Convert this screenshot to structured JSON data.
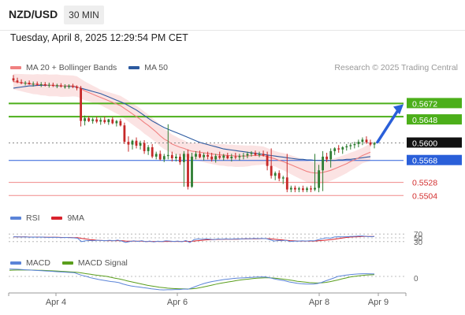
{
  "header": {
    "symbol": "NZD/USD",
    "interval": "30 MIN",
    "datetime": "Tuesday, April 8, 2025 12:29:54 PM CET"
  },
  "legend_main": [
    {
      "label": "MA 20 + Bollinger Bands",
      "color": "#f08080"
    },
    {
      "label": "MA 50",
      "color": "#2c5aa0"
    }
  ],
  "copyright": "Research © 2025 Trading Central",
  "legend_rsi": [
    {
      "label": "RSI",
      "color": "#5b84d8"
    },
    {
      "label": "9MA",
      "color": "#d9232d"
    }
  ],
  "legend_macd": [
    {
      "label": "MACD",
      "color": "#5b84d8"
    },
    {
      "label": "MACD Signal",
      "color": "#5a9e1c"
    }
  ],
  "colors": {
    "bull": "#2e7d32",
    "bear": "#c62828",
    "band": "#fbe3e3",
    "ma20": "#f08080",
    "ma50": "#2c5aa0",
    "target": "#4caf1a",
    "pivot": "#2a5fd9",
    "support": "#f08a8a",
    "arrow": "#2a5fd9"
  },
  "chart_data": [
    {
      "type": "candlestick",
      "x_labels": [
        "Apr 4",
        "Apr 6",
        "Apr 8",
        "Apr 9"
      ],
      "ylim": [
        0.549,
        0.572
      ],
      "price_levels": [
        {
          "value": 0.5672,
          "label": "0.5672",
          "kind": "target"
        },
        {
          "value": 0.5648,
          "label": "0.5648",
          "kind": "target"
        },
        {
          "value": 0.56,
          "label": "0.5600",
          "kind": "last"
        },
        {
          "value": 0.5568,
          "label": "0.5568",
          "kind": "pivot"
        },
        {
          "value": 0.5528,
          "label": "0.5528",
          "kind": "support"
        },
        {
          "value": 0.5504,
          "label": "0.5504",
          "kind": "support"
        }
      ],
      "candles": [
        [
          0.5718,
          0.5724,
          0.5711,
          0.5714
        ],
        [
          0.5714,
          0.5719,
          0.5709,
          0.5711
        ],
        [
          0.5711,
          0.5716,
          0.5707,
          0.5709
        ],
        [
          0.5709,
          0.5713,
          0.5705,
          0.571
        ],
        [
          0.571,
          0.5714,
          0.5706,
          0.5707
        ],
        [
          0.5707,
          0.5712,
          0.5703,
          0.5708
        ],
        [
          0.5708,
          0.5712,
          0.5704,
          0.5706
        ],
        [
          0.5706,
          0.5711,
          0.5702,
          0.5707
        ],
        [
          0.5707,
          0.5711,
          0.5703,
          0.5705
        ],
        [
          0.5705,
          0.571,
          0.5701,
          0.5706
        ],
        [
          0.5706,
          0.571,
          0.5702,
          0.5704
        ],
        [
          0.5704,
          0.5708,
          0.57,
          0.5705
        ],
        [
          0.5705,
          0.5709,
          0.5701,
          0.5703
        ],
        [
          0.5703,
          0.5707,
          0.5699,
          0.5703
        ],
        [
          0.5703,
          0.5707,
          0.5699,
          0.5704
        ],
        [
          0.5704,
          0.5708,
          0.57,
          0.5702
        ],
        [
          0.5702,
          0.5705,
          0.5696,
          0.57
        ],
        [
          0.57,
          0.5704,
          0.563,
          0.564
        ],
        [
          0.564,
          0.565,
          0.5632,
          0.5645
        ],
        [
          0.5645,
          0.5649,
          0.5638,
          0.564
        ],
        [
          0.564,
          0.5646,
          0.5635,
          0.5643
        ],
        [
          0.5643,
          0.5648,
          0.5636,
          0.5639
        ],
        [
          0.5639,
          0.5646,
          0.5633,
          0.5642
        ],
        [
          0.5642,
          0.5648,
          0.5635,
          0.5638
        ],
        [
          0.5638,
          0.5644,
          0.5633,
          0.5643
        ],
        [
          0.5643,
          0.5647,
          0.5634,
          0.5636
        ],
        [
          0.5636,
          0.5642,
          0.563,
          0.564
        ],
        [
          0.564,
          0.5644,
          0.563,
          0.5632
        ],
        [
          0.5632,
          0.5637,
          0.5598,
          0.5602
        ],
        [
          0.5602,
          0.5612,
          0.5584,
          0.5597
        ],
        [
          0.5597,
          0.5606,
          0.5588,
          0.5604
        ],
        [
          0.5604,
          0.561,
          0.559,
          0.5595
        ],
        [
          0.5595,
          0.5604,
          0.5588,
          0.56
        ],
        [
          0.56,
          0.5605,
          0.558,
          0.5585
        ],
        [
          0.5585,
          0.5596,
          0.5578,
          0.5592
        ],
        [
          0.5592,
          0.5598,
          0.5572,
          0.5575
        ],
        [
          0.5575,
          0.5584,
          0.557,
          0.558
        ],
        [
          0.558,
          0.5586,
          0.5568,
          0.557
        ],
        [
          0.557,
          0.558,
          0.5565,
          0.5576
        ],
        [
          0.5576,
          0.5634,
          0.557,
          0.5578
        ],
        [
          0.5578,
          0.5584,
          0.5566,
          0.5572
        ],
        [
          0.5572,
          0.558,
          0.5566,
          0.5575
        ],
        [
          0.5575,
          0.558,
          0.556,
          0.5565
        ],
        [
          0.5565,
          0.5585,
          0.552,
          0.558
        ],
        [
          0.558,
          0.5588,
          0.5515,
          0.552
        ],
        [
          0.552,
          0.5582,
          0.5518,
          0.5575
        ],
        [
          0.5575,
          0.5585,
          0.557,
          0.558
        ],
        [
          0.558,
          0.5586,
          0.5572,
          0.5574
        ],
        [
          0.5574,
          0.5582,
          0.5568,
          0.5578
        ],
        [
          0.5578,
          0.5584,
          0.557,
          0.5575
        ],
        [
          0.5575,
          0.5582,
          0.5566,
          0.557
        ],
        [
          0.557,
          0.558,
          0.5564,
          0.5576
        ],
        [
          0.5576,
          0.5584,
          0.557,
          0.5573
        ],
        [
          0.5573,
          0.558,
          0.5568,
          0.5577
        ],
        [
          0.5577,
          0.5582,
          0.557,
          0.5572
        ],
        [
          0.5572,
          0.558,
          0.5566,
          0.5575
        ],
        [
          0.5575,
          0.5582,
          0.557,
          0.5574
        ],
        [
          0.5574,
          0.558,
          0.5568,
          0.5576
        ],
        [
          0.5576,
          0.5582,
          0.557,
          0.5577
        ],
        [
          0.5577,
          0.5584,
          0.5572,
          0.558
        ],
        [
          0.558,
          0.5585,
          0.5575,
          0.5582
        ],
        [
          0.5582,
          0.5586,
          0.5576,
          0.5578
        ],
        [
          0.5578,
          0.5584,
          0.5574,
          0.558
        ],
        [
          0.558,
          0.5586,
          0.5575,
          0.5577
        ],
        [
          0.5577,
          0.5584,
          0.555,
          0.5558
        ],
        [
          0.5558,
          0.559,
          0.5535,
          0.554
        ],
        [
          0.554,
          0.5548,
          0.5532,
          0.5545
        ],
        [
          0.5545,
          0.555,
          0.553,
          0.5535
        ],
        [
          0.5535,
          0.554,
          0.5525,
          0.5537
        ],
        [
          0.5537,
          0.558,
          0.551,
          0.5515
        ],
        [
          0.5515,
          0.5522,
          0.551,
          0.5518
        ],
        [
          0.5518,
          0.5522,
          0.551,
          0.5515
        ],
        [
          0.5515,
          0.552,
          0.551,
          0.5517
        ],
        [
          0.5517,
          0.5522,
          0.551,
          0.5514
        ],
        [
          0.5514,
          0.552,
          0.551,
          0.5517
        ],
        [
          0.5517,
          0.5522,
          0.551,
          0.5515
        ],
        [
          0.5515,
          0.558,
          0.5512,
          0.5518
        ],
        [
          0.5518,
          0.556,
          0.551,
          0.555
        ],
        [
          0.555,
          0.5585,
          0.5512,
          0.5575
        ],
        [
          0.5575,
          0.5582,
          0.5565,
          0.557
        ],
        [
          0.557,
          0.559,
          0.5555,
          0.5585
        ],
        [
          0.5585,
          0.5592,
          0.5578,
          0.559
        ],
        [
          0.559,
          0.5596,
          0.5582,
          0.5588
        ],
        [
          0.5588,
          0.5594,
          0.558,
          0.5592
        ],
        [
          0.5592,
          0.5598,
          0.5586,
          0.5594
        ],
        [
          0.5594,
          0.56,
          0.5588,
          0.5596
        ],
        [
          0.5596,
          0.5602,
          0.559,
          0.5598
        ],
        [
          0.5598,
          0.5606,
          0.5592,
          0.5602
        ],
        [
          0.5602,
          0.561,
          0.5596,
          0.5606
        ],
        [
          0.5606,
          0.5612,
          0.5598,
          0.5601
        ],
        [
          0.5601,
          0.5606,
          0.5594,
          0.5597
        ],
        [
          0.5597,
          0.5602,
          0.559,
          0.56
        ]
      ],
      "ma20": [
        0.5712,
        0.5711,
        0.571,
        0.5709,
        0.5708,
        0.5707,
        0.5707,
        0.5706,
        0.5706,
        0.5705,
        0.5705,
        0.5705,
        0.5704,
        0.5704,
        0.5704,
        0.5704,
        0.5703,
        0.5699,
        0.5695,
        0.5692,
        0.5689,
        0.5686,
        0.5683,
        0.568,
        0.5677,
        0.5674,
        0.5671,
        0.5668,
        0.5663,
        0.5658,
        0.5653,
        0.5648,
        0.5643,
        0.5637,
        0.5632,
        0.5626,
        0.562,
        0.5613,
        0.5607,
        0.5603,
        0.5598,
        0.5595,
        0.5592,
        0.559,
        0.5587,
        0.5585,
        0.5584,
        0.5583,
        0.5582,
        0.5581,
        0.558,
        0.5579,
        0.5578,
        0.5578,
        0.5577,
        0.5577,
        0.5576,
        0.5576,
        0.5576,
        0.5576,
        0.5577,
        0.5577,
        0.5577,
        0.5577,
        0.5575,
        0.5573,
        0.5571,
        0.5568,
        0.5566,
        0.5563,
        0.556,
        0.5557,
        0.5554,
        0.5551,
        0.5548,
        0.5546,
        0.5545,
        0.5545,
        0.5546,
        0.5548,
        0.555,
        0.5553,
        0.5556,
        0.5559,
        0.5562,
        0.5566,
        0.5569,
        0.5573,
        0.5577,
        0.558,
        0.5583
      ],
      "ma50": [
        0.57,
        0.5701,
        0.5702,
        0.5703,
        0.5704,
        0.5704,
        0.5705,
        0.5705,
        0.5705,
        0.5705,
        0.5705,
        0.5704,
        0.5704,
        0.5704,
        0.5703,
        0.5703,
        0.5702,
        0.57,
        0.5698,
        0.5696,
        0.5694,
        0.5692,
        0.569,
        0.5687,
        0.5684,
        0.5681,
        0.5678,
        0.5675,
        0.5672,
        0.5668,
        0.5664,
        0.566,
        0.5655,
        0.565,
        0.5645,
        0.564,
        0.5636,
        0.5632,
        0.5628,
        0.5625,
        0.5622,
        0.5619,
        0.5616,
        0.5613,
        0.561,
        0.5607,
        0.5604,
        0.5601,
        0.5599,
        0.5597,
        0.5595,
        0.5593,
        0.5591,
        0.5589,
        0.5588,
        0.5587,
        0.5586,
        0.5585,
        0.5584,
        0.5583,
        0.5582,
        0.5581,
        0.558,
        0.5579,
        0.5578,
        0.5577,
        0.5576,
        0.5575,
        0.5574,
        0.5573,
        0.5572,
        0.5571,
        0.557,
        0.557,
        0.5569,
        0.5569,
        0.5568,
        0.5568,
        0.5568,
        0.5568,
        0.5568,
        0.5568,
        0.5569,
        0.5569,
        0.557,
        0.557,
        0.5571,
        0.5572,
        0.5573,
        0.5574,
        0.5575
      ]
    },
    {
      "type": "line",
      "name": "RSI",
      "ylim": [
        0,
        100
      ],
      "levels": [
        70,
        50,
        30
      ],
      "level_labels": [
        "70",
        "50",
        "30"
      ],
      "rsi": [
        56,
        55,
        54,
        55,
        53,
        54,
        53,
        54,
        53,
        52,
        53,
        52,
        51,
        52,
        51,
        50,
        48,
        30,
        34,
        36,
        35,
        37,
        36,
        35,
        37,
        34,
        38,
        33,
        26,
        30,
        34,
        31,
        35,
        29,
        33,
        28,
        32,
        30,
        34,
        33,
        31,
        33,
        29,
        36,
        25,
        40,
        44,
        42,
        44,
        43,
        41,
        44,
        42,
        45,
        43,
        44,
        45,
        44,
        46,
        45,
        47,
        46,
        47,
        46,
        40,
        33,
        36,
        35,
        37,
        30,
        33,
        32,
        34,
        33,
        35,
        34,
        40,
        45,
        50,
        48,
        54,
        56,
        55,
        56,
        57,
        58,
        59,
        60,
        58,
        56,
        57
      ],
      "rsi_ma": [
        55,
        55,
        55,
        55,
        54,
        54,
        54,
        54,
        53,
        53,
        53,
        53,
        52,
        52,
        52,
        51,
        51,
        47,
        44,
        41,
        39,
        37,
        36,
        35,
        35,
        35,
        35,
        35,
        33,
        32,
        32,
        32,
        32,
        31,
        31,
        31,
        31,
        30,
        31,
        31,
        31,
        31,
        31,
        32,
        31,
        33,
        35,
        37,
        39,
        40,
        41,
        42,
        42,
        43,
        43,
        43,
        43,
        44,
        44,
        45,
        45,
        45,
        46,
        46,
        45,
        43,
        41,
        39,
        37,
        35,
        34,
        33,
        33,
        33,
        33,
        33,
        34,
        36,
        38,
        40,
        43,
        46,
        49,
        52,
        54,
        55,
        56,
        57,
        57,
        57,
        57
      ]
    },
    {
      "type": "line",
      "name": "MACD",
      "zero_label": "0",
      "macd": [
        0.0006,
        0.00059,
        0.00058,
        0.00056,
        0.00054,
        0.00052,
        0.0005,
        0.00048,
        0.00046,
        0.00044,
        0.00042,
        0.0004,
        0.00038,
        0.00036,
        0.00034,
        0.00032,
        0.0003,
        0.00018,
        8e-05,
        0.0,
        -6e-05,
        -0.0001,
        -0.00014,
        -0.00017,
        -0.0002,
        -0.00023,
        -0.00025,
        -0.00028,
        -0.00034,
        -0.00039,
        -0.00043,
        -0.00046,
        -0.00048,
        -0.00051,
        -0.00053,
        -0.00056,
        -0.00058,
        -0.0006,
        -0.00061,
        -0.0006,
        -0.0006,
        -0.00059,
        -0.00059,
        -0.00057,
        -0.00058,
        -0.00052,
        -0.00045,
        -0.00038,
        -0.00032,
        -0.00027,
        -0.00023,
        -0.0002,
        -0.00017,
        -0.00014,
        -0.00012,
        -0.0001,
        -8e-05,
        -7e-05,
        -6e-05,
        -5e-05,
        -4e-05,
        -3e-05,
        -3e-05,
        -2e-05,
        -5e-05,
        -0.0001,
        -0.00014,
        -0.00017,
        -0.0002,
        -0.00025,
        -0.00028,
        -0.00031,
        -0.00033,
        -0.00034,
        -0.00035,
        -0.00035,
        -0.00032,
        -0.00027,
        -0.0002,
        -0.00014,
        -7e-05,
        0.0,
        5e-05,
        0.0001,
        0.00014,
        0.00017,
        0.0002,
        0.00022,
        0.00022,
        0.00021,
        0.0002
      ],
      "signal": [
        0.0005,
        0.00051,
        0.00052,
        0.00052,
        0.00052,
        0.00052,
        0.00051,
        0.0005,
        0.00049,
        0.00048,
        0.00047,
        0.00045,
        0.00043,
        0.00041,
        0.00039,
        0.00037,
        0.00035,
        0.00032,
        0.00027,
        0.00022,
        0.00017,
        0.00012,
        8e-05,
        4e-05,
        0.0,
        -4e-05,
        -8e-05,
        -0.00011,
        -0.00015,
        -0.0002,
        -0.00024,
        -0.00028,
        -0.00032,
        -0.00036,
        -0.0004,
        -0.00043,
        -0.00046,
        -0.00049,
        -0.00051,
        -0.00053,
        -0.00054,
        -0.00055,
        -0.00056,
        -0.00056,
        -0.00057,
        -0.00056,
        -0.00054,
        -0.00051,
        -0.00047,
        -0.00043,
        -0.00039,
        -0.00035,
        -0.00031,
        -0.00028,
        -0.00025,
        -0.00022,
        -0.00019,
        -0.00016,
        -0.00014,
        -0.00012,
        -0.0001,
        -8e-05,
        -7e-05,
        -6e-05,
        -6e-05,
        -7e-05,
        -9e-05,
        -0.00011,
        -0.00013,
        -0.00016,
        -0.00019,
        -0.00022,
        -0.00024,
        -0.00026,
        -0.00028,
        -0.00029,
        -0.0003,
        -0.00029,
        -0.00027,
        -0.00024,
        -0.0002,
        -0.00016,
        -0.00011,
        -7e-05,
        -3e-05,
        0.0,
        4e-05,
        8e-05,
        0.00011,
        0.00013,
        0.00015
      ]
    }
  ]
}
